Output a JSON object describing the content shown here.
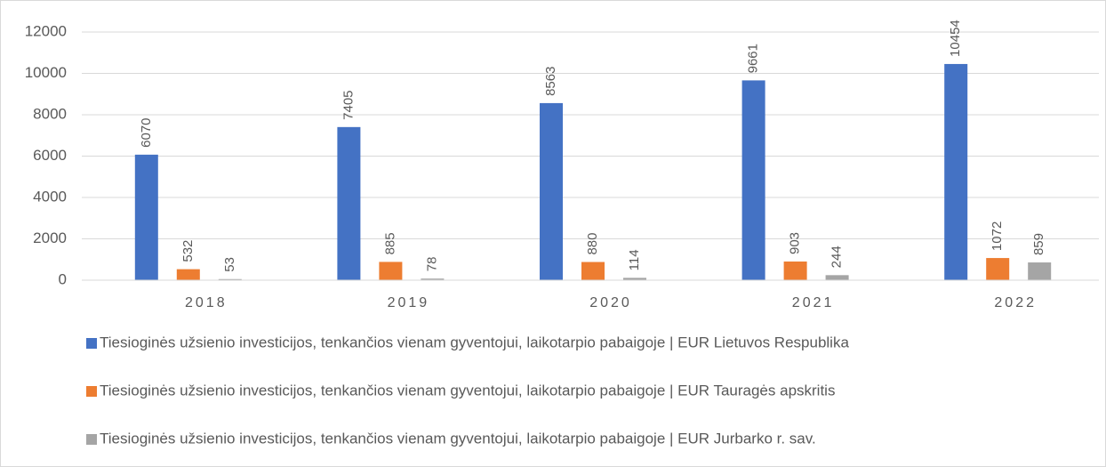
{
  "chart_data": {
    "type": "bar",
    "categories": [
      "2018",
      "2019",
      "2020",
      "2021",
      "2022"
    ],
    "series": [
      {
        "name": "Tiesioginės užsienio investicijos, tenkančios vienam gyventojui, laikotarpio pabaigoje | EUR Lietuvos Respublika",
        "color": "#4472c4",
        "values": [
          6070,
          7405,
          8563,
          9661,
          10454
        ]
      },
      {
        "name": "Tiesioginės užsienio investicijos, tenkančios vienam gyventojui, laikotarpio pabaigoje | EUR Tauragės apskritis",
        "color": "#ed7d31",
        "values": [
          532,
          885,
          880,
          903,
          1072
        ]
      },
      {
        "name": "Tiesioginės užsienio investicijos, tenkančios vienam gyventojui, laikotarpio pabaigoje | EUR Jurbarko r. sav.",
        "color": "#a5a5a5",
        "values": [
          53,
          78,
          114,
          244,
          859
        ]
      }
    ],
    "ylim": [
      0,
      12000
    ],
    "yticks": [
      0,
      2000,
      4000,
      6000,
      8000,
      10000,
      12000
    ],
    "grid": true,
    "legend": "bottom"
  }
}
